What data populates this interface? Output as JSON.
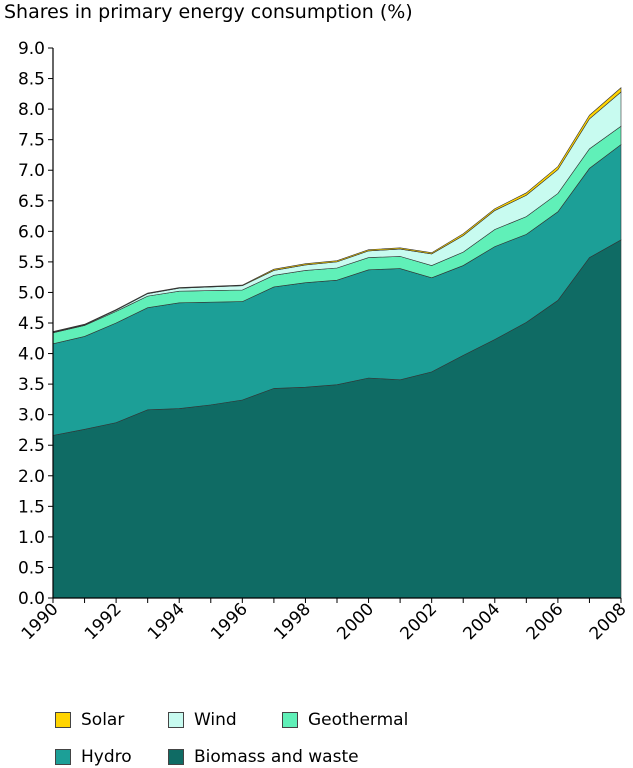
{
  "chart_data": {
    "type": "area",
    "stacked": true,
    "title": "Shares in primary energy consumption (%)",
    "x": [
      1990,
      1991,
      1992,
      1993,
      1994,
      1995,
      1996,
      1997,
      1998,
      1999,
      2000,
      2001,
      2002,
      2003,
      2004,
      2005,
      2006,
      2007,
      2008
    ],
    "x_tick_labels": [
      "1990",
      "1992",
      "1994",
      "1996",
      "1998",
      "2000",
      "2002",
      "2004",
      "2006",
      "2008"
    ],
    "ylim": [
      0,
      9
    ],
    "y_tick_labels": [
      "0.0",
      "0.5",
      "1.0",
      "1.5",
      "2.0",
      "2.5",
      "3.0",
      "3.5",
      "4.0",
      "4.5",
      "5.0",
      "5.5",
      "6.0",
      "6.5",
      "7.0",
      "7.5",
      "8.0",
      "8.5",
      "9.0"
    ],
    "grid": false,
    "legend_position": "bottom",
    "series": [
      {
        "name": "Biomass and waste",
        "color": "#0f6b64",
        "values": [
          2.66,
          2.76,
          2.87,
          3.08,
          3.1,
          3.16,
          3.24,
          3.43,
          3.45,
          3.49,
          3.6,
          3.57,
          3.7,
          3.97,
          4.23,
          4.51,
          4.87,
          5.57,
          5.86
        ]
      },
      {
        "name": "Hydro",
        "color": "#1c9f97",
        "values": [
          1.5,
          1.52,
          1.63,
          1.67,
          1.73,
          1.68,
          1.61,
          1.66,
          1.71,
          1.71,
          1.77,
          1.82,
          1.54,
          1.47,
          1.52,
          1.44,
          1.45,
          1.46,
          1.56
        ]
      },
      {
        "name": "Geothermal",
        "color": "#60f0b8",
        "values": [
          0.18,
          0.18,
          0.19,
          0.19,
          0.19,
          0.19,
          0.19,
          0.19,
          0.2,
          0.2,
          0.2,
          0.2,
          0.2,
          0.22,
          0.28,
          0.29,
          0.3,
          0.32,
          0.3
        ]
      },
      {
        "name": "Wind",
        "color": "#c8fbf0",
        "values": [
          0.01,
          0.01,
          0.02,
          0.04,
          0.05,
          0.06,
          0.07,
          0.08,
          0.09,
          0.1,
          0.11,
          0.12,
          0.19,
          0.27,
          0.31,
          0.35,
          0.39,
          0.49,
          0.56
        ]
      },
      {
        "name": "Solar",
        "color": "#ffd400",
        "values": [
          0.01,
          0.01,
          0.01,
          0.01,
          0.01,
          0.01,
          0.01,
          0.02,
          0.02,
          0.02,
          0.02,
          0.02,
          0.02,
          0.03,
          0.03,
          0.04,
          0.05,
          0.06,
          0.07
        ]
      }
    ],
    "legend_order": [
      "Solar",
      "Wind",
      "Geothermal",
      "Hydro",
      "Biomass and waste"
    ]
  }
}
